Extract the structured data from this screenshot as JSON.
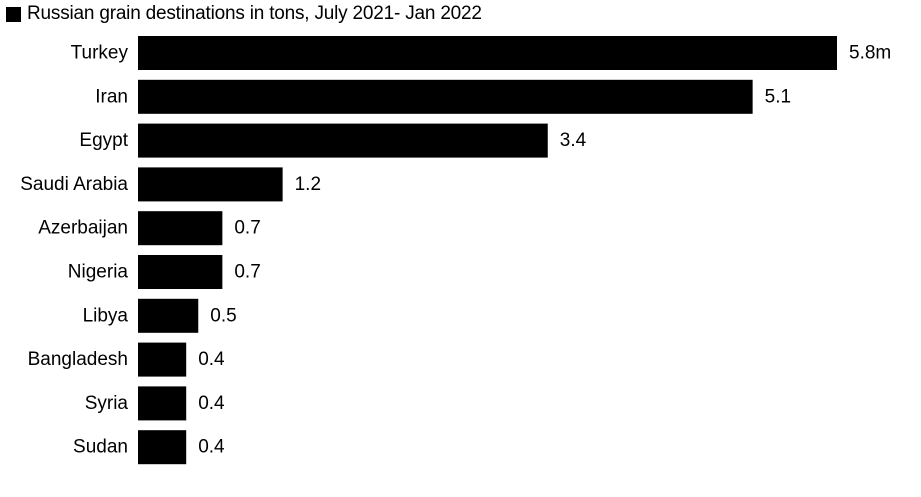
{
  "chart_data": {
    "type": "bar",
    "orientation": "horizontal",
    "title": "Russian grain destinations in tons, July 2021- Jan 2022",
    "categories": [
      "Turkey",
      "Iran",
      "Egypt",
      "Saudi Arabia",
      "Azerbaijan",
      "Nigeria",
      "Libya",
      "Bangladesh",
      "Syria",
      "Sudan"
    ],
    "values": [
      5.8,
      5.1,
      3.4,
      1.2,
      0.7,
      0.7,
      0.5,
      0.4,
      0.4,
      0.4
    ],
    "value_labels": [
      "5.8m",
      "5.1",
      "3.4",
      "1.2",
      "0.7",
      "0.7",
      "0.5",
      "0.4",
      "0.4",
      "0.4"
    ],
    "unit": "m",
    "xlim": [
      0,
      5.8
    ],
    "grid": false,
    "bar_color": "#000000",
    "legend": {
      "label": "Russian grain destinations in tons, July 2021- Jan 2022",
      "color": "#000000",
      "position": "top-left"
    }
  }
}
